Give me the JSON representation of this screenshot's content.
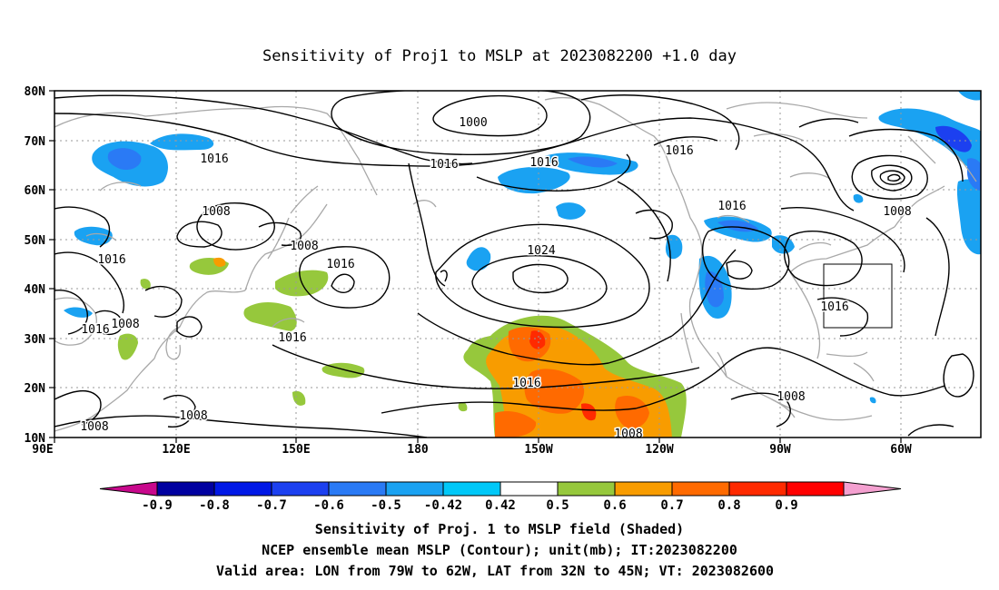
{
  "title": "Sensitivity of Proj1 to MSLP at 2023082200 +1.0 day",
  "axes": {
    "lat_labels": [
      "80N",
      "70N",
      "60N",
      "50N",
      "40N",
      "30N",
      "20N",
      "10N"
    ],
    "lon_labels": [
      "90E",
      "120E",
      "150E",
      "180",
      "150W",
      "120W",
      "90W",
      "60W"
    ]
  },
  "contour_labels": [
    "1000",
    "1016",
    "1016",
    "1016",
    "1016",
    "1008",
    "1016",
    "1008",
    "1016",
    "1024",
    "1016",
    "1008",
    "1016",
    "1016",
    "1008",
    "1016",
    "1016",
    "1008",
    "1008",
    "1008",
    "1008"
  ],
  "colorbar": {
    "tick_labels": [
      "-0.9",
      "-0.8",
      "-0.7",
      "-0.6",
      "-0.5",
      "-0.42",
      "0.42",
      "0.5",
      "0.6",
      "0.7",
      "0.8",
      "0.9"
    ],
    "colors": [
      "#c8088c",
      "#0000a0",
      "#0018e6",
      "#1c40f0",
      "#2a7af5",
      "#1aa2f2",
      "#00c8f8",
      "#ffffff",
      "#96c83c",
      "#f89c00",
      "#ff6a00",
      "#ff2a00",
      "#ff0000",
      "#f4a0d0"
    ]
  },
  "captions": [
    "Sensitivity of Proj. 1 to MSLP field (Shaded)",
    "NCEP ensemble mean MSLP (Contour); unit(mb); IT:2023082200",
    "Valid area: LON from 79W to 62W, LAT from 32N to 45N; VT: 2023082600"
  ]
}
